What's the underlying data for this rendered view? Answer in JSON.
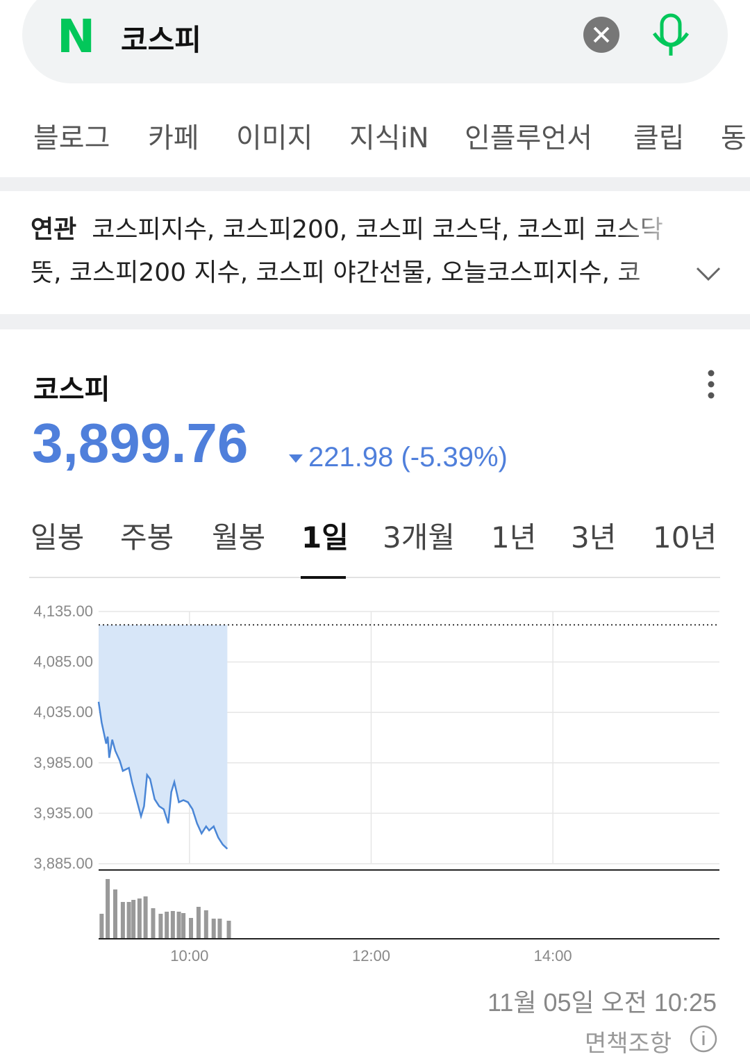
{
  "search": {
    "logo": "N",
    "query": "코스피"
  },
  "tabs": [
    "블로그",
    "카페",
    "이미지",
    "지식iN",
    "인플루언서",
    "클립",
    "동"
  ],
  "related": {
    "label": "연관",
    "text": "코스피지수, 코스피200, 코스피 코스닥, 코스피 코스닥 뜻, 코스피200 지수, 코스피 야간선물, 오늘코스피지수, 코"
  },
  "stock": {
    "name": "코스피",
    "price": "3,899.76",
    "change": "221.98",
    "change_pct": "(-5.39%)"
  },
  "periods": [
    "일봉",
    "주봉",
    "월봉",
    "1일",
    "3개월",
    "1년",
    "3년",
    "10년"
  ],
  "active_period": 3,
  "chart_data": {
    "type": "line",
    "prev_close": 4121.74,
    "x": [
      540,
      542,
      545,
      546,
      547,
      549,
      551,
      554,
      556,
      560,
      562,
      565,
      568,
      570,
      572,
      574,
      577,
      580,
      583,
      586,
      588,
      590,
      593,
      596,
      599,
      602,
      605,
      608,
      611,
      613,
      616,
      619,
      622,
      625
    ],
    "series": [
      {
        "color": "#4a86d6",
        "values": [
          4045.5,
          4025,
          4004,
          4011,
          3990,
          4008,
          3997,
          3987,
          3977,
          3980,
          3966,
          3949,
          3932,
          3942,
          3973,
          3969,
          3949,
          3942,
          3939,
          3925,
          3956,
          3966,
          3946,
          3948,
          3946,
          3939,
          3925,
          3915,
          3922,
          3918,
          3922,
          3911,
          3904,
          3899.76
        ]
      }
    ],
    "xlim": [
      540,
      950
    ],
    "ylim": [
      3885,
      4135
    ],
    "yticks": [
      {
        "value": 3885,
        "label": "3,885.00"
      },
      {
        "value": 3935,
        "label": "3,935.00"
      },
      {
        "value": 3985,
        "label": "3,985.00"
      },
      {
        "value": 4035,
        "label": "4,035.00"
      },
      {
        "value": 4085,
        "label": "4,085.00"
      },
      {
        "value": 4135,
        "label": "4,135.00"
      }
    ],
    "xticks": [
      {
        "value": 600,
        "label": "10:00"
      },
      {
        "value": 720,
        "label": "12:00"
      },
      {
        "value": 840,
        "label": "14:00"
      }
    ],
    "grid": true,
    "volume": {
      "color": "#999999",
      "vlim": [
        0,
        100
      ],
      "x": [
        542,
        546,
        551,
        556,
        560,
        563,
        567,
        571,
        576,
        581,
        585,
        589,
        593,
        596,
        601,
        606,
        611,
        616,
        620,
        626
      ],
      "values": [
        35,
        85,
        70,
        52,
        52,
        55,
        57,
        60,
        43,
        35,
        38,
        39,
        38,
        36,
        29,
        45,
        40,
        28,
        28,
        25
      ]
    }
  },
  "timestamp": "11월 05일 오전 10:25",
  "disclaimer": "면책조항"
}
